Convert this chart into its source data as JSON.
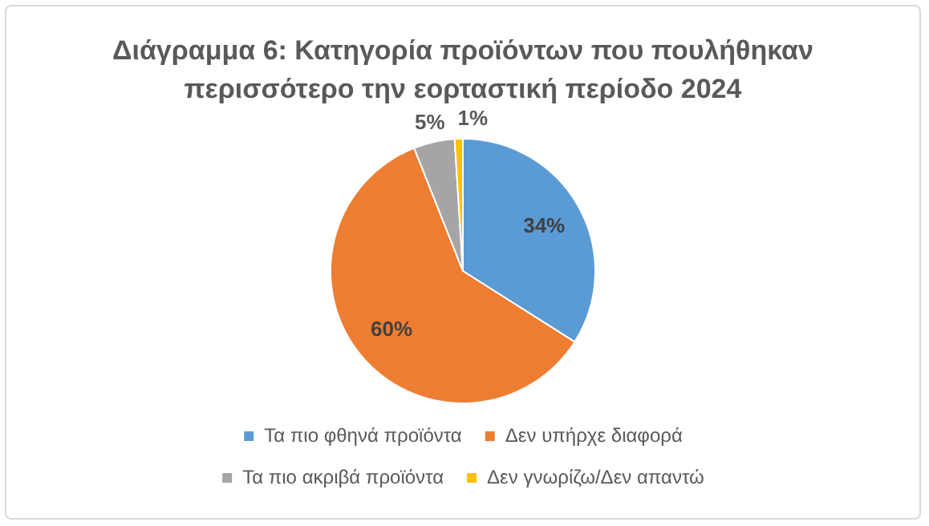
{
  "chart_data": {
    "type": "pie",
    "title": "Διάγραμμα 6: Κατηγορία προϊόντων που πουλήθηκαν περισσότερο την εορταστική περίοδο 2024",
    "categories": [
      "Τα πιο φθηνά προϊόντα",
      "Δεν υπήρχε διαφορά",
      "Τα πιο ακριβά προϊόντα",
      "Δεν γνωρίζω/Δεν απαντώ"
    ],
    "values": [
      34,
      60,
      5,
      1
    ],
    "colors": [
      "#5b9bd5",
      "#ed7d31",
      "#a5a5a5",
      "#ffc000"
    ],
    "value_labels": [
      "34%",
      "60%",
      "5%",
      "1%"
    ],
    "legend": "bottom"
  }
}
